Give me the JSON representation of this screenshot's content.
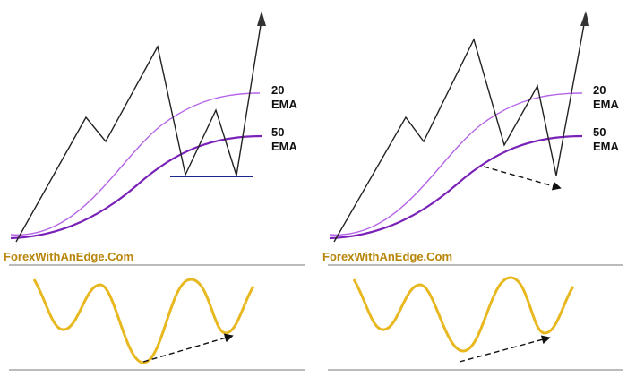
{
  "colors": {
    "background": "#ffffff",
    "price_line": "#222222",
    "ema20_line": "#b565e8",
    "ema50_line": "#7a22b8",
    "support_line": "#1b2a8a",
    "oscillator_line": "#e8b820",
    "divergence_arrow": "#111111",
    "separator": "#777777",
    "brand_text": "#b8860b"
  },
  "left_panel": {
    "ema20_label_top": "20",
    "ema20_label_bottom": "EMA",
    "ema50_label_top": "50",
    "ema50_label_bottom": "EMA",
    "brand": "ForexWithAnEdge.Com"
  },
  "right_panel": {
    "ema20_label_top": "20",
    "ema20_label_bottom": "EMA",
    "ema50_label_top": "50",
    "ema50_label_bottom": "EMA",
    "brand": "ForexWithAnEdge.Com"
  }
}
